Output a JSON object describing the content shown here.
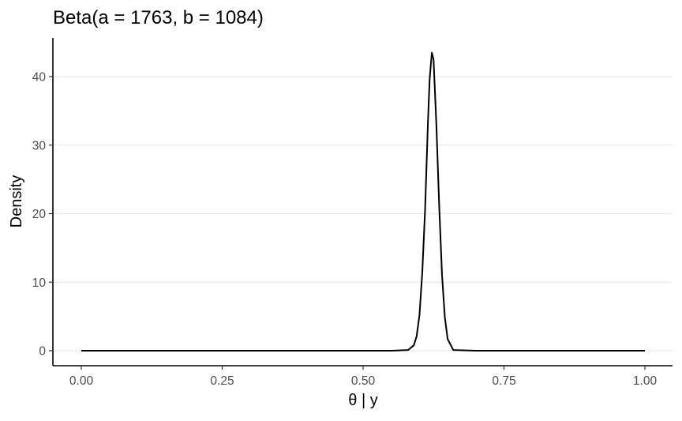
{
  "chart_data": {
    "type": "line",
    "title": "Beta(a = 1763, b = 1084)",
    "xlabel": "θ | y",
    "ylabel": "Density",
    "xlim": [
      0,
      1
    ],
    "ylim": [
      0,
      44
    ],
    "x_ticks": [
      {
        "value": 0.0,
        "label": "0.00"
      },
      {
        "value": 0.25,
        "label": "0.25"
      },
      {
        "value": 0.5,
        "label": "0.50"
      },
      {
        "value": 0.75,
        "label": "0.75"
      },
      {
        "value": 1.0,
        "label": "1.00"
      }
    ],
    "y_ticks": [
      {
        "value": 0,
        "label": "0"
      },
      {
        "value": 10,
        "label": "10"
      },
      {
        "value": 20,
        "label": "20"
      },
      {
        "value": 30,
        "label": "30"
      },
      {
        "value": 40,
        "label": "40"
      }
    ],
    "grid": {
      "major_y": true,
      "major_x": false
    },
    "line_color": "#000000",
    "series": [
      {
        "x": [
          0.0,
          0.1,
          0.2,
          0.3,
          0.4,
          0.5,
          0.55,
          0.58,
          0.59,
          0.595,
          0.6,
          0.605,
          0.61,
          0.615,
          0.618,
          0.62,
          0.622,
          0.625,
          0.63,
          0.635,
          0.64,
          0.645,
          0.65,
          0.66,
          0.7,
          0.8,
          0.9,
          1.0
        ],
        "y": [
          0,
          0,
          0,
          0,
          0,
          0,
          0,
          0.1,
          0.8,
          2.1,
          5.2,
          11.4,
          20.6,
          33.2,
          39.5,
          41.6,
          43.5,
          42.5,
          33.0,
          21.2,
          11.1,
          4.9,
          1.7,
          0.1,
          0,
          0,
          0,
          0
        ]
      }
    ]
  }
}
